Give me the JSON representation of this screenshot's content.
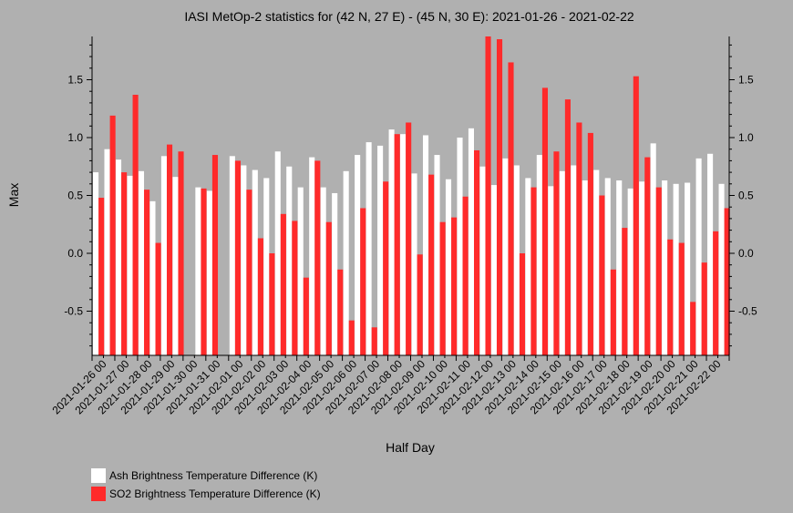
{
  "chart_data": {
    "type": "bar",
    "title": "IASI MetOp-2 statistics for (42 N, 27 E) - (45 N, 30 E): 2021-01-26 - 2021-02-22",
    "xlabel": "Half Day",
    "ylabel": "Max",
    "ylim": [
      -0.9,
      1.88
    ],
    "yticks": [
      "1.5",
      "1.0",
      "0.5",
      "0.0",
      "-0.5"
    ],
    "ytick_values": [
      1.5,
      1.0,
      0.5,
      0.0,
      -0.5
    ],
    "categories": [
      "2021-01-26 00",
      "2021-01-26 12",
      "2021-01-27 00",
      "2021-01-27 12",
      "2021-01-28 00",
      "2021-01-28 12",
      "2021-01-29 00",
      "2021-01-29 12",
      "2021-01-30 00",
      "2021-01-30 12",
      "2021-01-31 00",
      "2021-01-31 12",
      "2021-02-01 00",
      "2021-02-01 12",
      "2021-02-02 00",
      "2021-02-02 12",
      "2021-02-03 00",
      "2021-02-03 12",
      "2021-02-04 00",
      "2021-02-04 12",
      "2021-02-05 00",
      "2021-02-05 12",
      "2021-02-06 00",
      "2021-02-06 12",
      "2021-02-07 00",
      "2021-02-07 12",
      "2021-02-08 00",
      "2021-02-08 12",
      "2021-02-09 00",
      "2021-02-09 12",
      "2021-02-10 00",
      "2021-02-10 12",
      "2021-02-11 00",
      "2021-02-11 12",
      "2021-02-12 00",
      "2021-02-12 12",
      "2021-02-13 00",
      "2021-02-13 12",
      "2021-02-14 00",
      "2021-02-14 12",
      "2021-02-15 00",
      "2021-02-15 12",
      "2021-02-16 00",
      "2021-02-16 12",
      "2021-02-17 00",
      "2021-02-17 12",
      "2021-02-18 00",
      "2021-02-18 12",
      "2021-02-19 00",
      "2021-02-19 12",
      "2021-02-20 00",
      "2021-02-20 12",
      "2021-02-21 00",
      "2021-02-21 12",
      "2021-02-22 00",
      "2021-02-22 12"
    ],
    "xtick_labels": [
      "2021-01-26 00",
      "2021-01-27 00",
      "2021-01-28 00",
      "2021-01-29 00",
      "2021-01-30 00",
      "2021-01-31 00",
      "2021-02-01 00",
      "2021-02-02 00",
      "2021-02-03 00",
      "2021-02-04 00",
      "2021-02-05 00",
      "2021-02-06 00",
      "2021-02-07 00",
      "2021-02-08 00",
      "2021-02-09 00",
      "2021-02-10 00",
      "2021-02-11 00",
      "2021-02-12 00",
      "2021-02-13 00",
      "2021-02-14 00",
      "2021-02-15 00",
      "2021-02-16 00",
      "2021-02-17 00",
      "2021-02-18 00",
      "2021-02-19 00",
      "2021-02-20 00",
      "2021-02-21 00",
      "2021-02-22 00"
    ],
    "series": [
      {
        "name": "Ash Brightness Temperature Difference (K)",
        "color": "#ffffff",
        "values": [
          0.7,
          0.9,
          0.81,
          0.67,
          0.71,
          0.45,
          0.84,
          0.66,
          null,
          0.57,
          0.54,
          null,
          0.84,
          0.76,
          0.72,
          0.65,
          0.88,
          0.75,
          0.57,
          0.83,
          0.57,
          0.52,
          0.71,
          0.85,
          0.96,
          0.93,
          1.07,
          1.03,
          0.69,
          1.02,
          0.85,
          0.64,
          1.0,
          1.08,
          0.75,
          0.59,
          0.82,
          0.76,
          0.65,
          0.85,
          0.58,
          0.71,
          0.76,
          0.63,
          0.72,
          0.65,
          0.63,
          0.56,
          0.62,
          0.95,
          0.63,
          0.6,
          0.61,
          0.82,
          0.86,
          0.6
        ]
      },
      {
        "name": "SO2 Brightness Temperature Difference (K)",
        "color": "#ff2a2a",
        "values": [
          0.48,
          1.19,
          0.7,
          1.37,
          0.55,
          0.09,
          0.94,
          0.88,
          null,
          0.56,
          0.85,
          null,
          0.8,
          0.55,
          0.13,
          0.0,
          0.34,
          0.28,
          -0.21,
          0.8,
          0.27,
          -0.14,
          -0.58,
          0.39,
          -0.64,
          0.62,
          1.03,
          1.13,
          -0.01,
          0.68,
          0.27,
          0.31,
          0.49,
          0.89,
          1.88,
          1.85,
          1.65,
          0.0,
          0.57,
          1.43,
          0.88,
          1.33,
          1.13,
          1.04,
          0.5,
          -0.14,
          0.22,
          1.53,
          0.83,
          0.57,
          0.12,
          0.09,
          -0.42,
          -0.08,
          0.19,
          0.39
        ]
      }
    ],
    "legend": "bottom-left",
    "grid": false
  }
}
